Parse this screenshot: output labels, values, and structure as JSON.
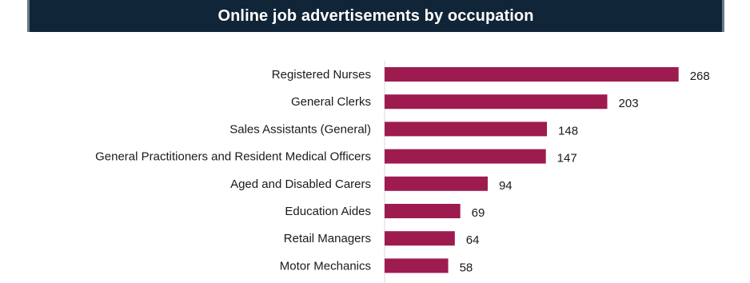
{
  "chart_data": {
    "type": "bar",
    "orientation": "horizontal",
    "title": "Online job advertisements by occupation",
    "categories": [
      "Registered Nurses",
      "General Clerks",
      "Sales Assistants (General)",
      "General Practitioners and Resident Medical Officers",
      "Aged and Disabled Carers",
      "Education Aides",
      "Retail Managers",
      "Motor Mechanics"
    ],
    "values": [
      268,
      203,
      148,
      147,
      94,
      69,
      64,
      58
    ],
    "xlim": [
      0,
      300
    ],
    "grid": false,
    "legend": "none",
    "data_labels": true
  },
  "colors": {
    "title_background": "#102538",
    "title_text": "#ffffff",
    "bar": "#9e1b4f",
    "axis": "#d9d9d9"
  }
}
